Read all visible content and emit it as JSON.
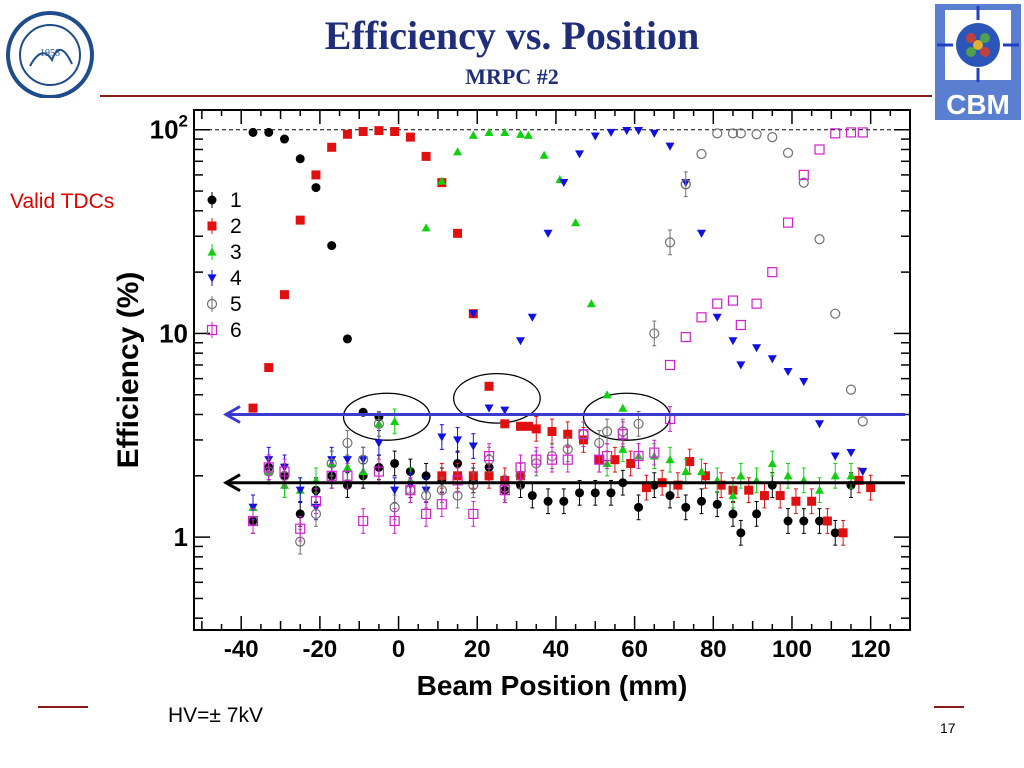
{
  "slide": {
    "title": "Efficiency vs. Position",
    "subtitle": "MRPC #2",
    "left_note": "Valid TDCs",
    "hv_label": "HV=± 7kV",
    "page_number": "17",
    "logo_right_text": "CBM",
    "logo_left_year": "1958"
  },
  "colors": {
    "title": "#1f2d7a",
    "rule": "#8b1a1a",
    "note": "#e00000",
    "blue_arrow": "#3a3ad0",
    "black_arrow": "#000000",
    "ellipse": "#000000"
  },
  "chart_data": {
    "type": "scatter",
    "xlabel": "Beam Position (mm)",
    "ylabel": "Efficiency (%)",
    "xlim": [
      -52,
      130
    ],
    "ylim": [
      0.35,
      125
    ],
    "yscale": "log",
    "xticks": [
      -40,
      -20,
      0,
      20,
      40,
      60,
      80,
      100,
      120
    ],
    "xtick_labels": [
      "-40",
      "-20",
      "0",
      "20",
      "40",
      "60",
      "80",
      "100",
      "120"
    ],
    "yticks": [
      1,
      10,
      100
    ],
    "ytick_labels": [
      "1",
      "10",
      "10^2"
    ],
    "legend_position": "top-left",
    "reference_line_y": 100,
    "arrows": [
      {
        "color": "blue",
        "y": 4.0
      },
      {
        "color": "black",
        "y": 1.85
      }
    ],
    "ellipses": [
      {
        "cx": -3,
        "cy": 3.9,
        "rx": 11,
        "ry_lo": 3.0,
        "ry_hi": 5.1
      },
      {
        "cx": 25,
        "cy": 4.8,
        "rx": 11,
        "ry_lo": 3.6,
        "ry_hi": 6.3
      },
      {
        "cx": 58,
        "cy": 3.9,
        "rx": 11,
        "ry_lo": 3.0,
        "ry_hi": 5.1
      }
    ],
    "series": [
      {
        "name": "1",
        "color": "#000000",
        "marker": "circle-filled",
        "main": [
          [
            -37,
            97
          ],
          [
            -33,
            97
          ],
          [
            -29,
            90
          ],
          [
            -25,
            72
          ],
          [
            -21,
            52
          ],
          [
            -17,
            27
          ],
          [
            -13,
            9.4
          ],
          [
            -9,
            4.1
          ],
          [
            -5,
            3.9
          ]
        ],
        "low": [
          [
            -37,
            1.2
          ],
          [
            -33,
            2.2
          ],
          [
            -29,
            2.0
          ],
          [
            -25,
            1.3
          ],
          [
            -21,
            1.7
          ],
          [
            -17,
            2.0
          ],
          [
            -13,
            1.8
          ],
          [
            -9,
            2.0
          ],
          [
            -5,
            2.2
          ],
          [
            -1,
            2.3
          ],
          [
            3,
            2.1
          ],
          [
            7,
            2.0
          ],
          [
            11,
            1.9
          ],
          [
            15,
            2.3
          ],
          [
            19,
            1.9
          ],
          [
            23,
            2.2
          ],
          [
            27,
            1.7
          ],
          [
            31,
            1.8
          ],
          [
            34,
            1.6
          ],
          [
            38,
            1.5
          ],
          [
            42,
            1.5
          ],
          [
            46,
            1.65
          ],
          [
            50,
            1.65
          ],
          [
            54,
            1.65
          ],
          [
            57,
            1.85
          ],
          [
            61,
            1.4
          ],
          [
            65,
            1.8
          ],
          [
            69,
            1.6
          ],
          [
            73,
            1.4
          ],
          [
            77,
            1.5
          ],
          [
            81,
            1.45
          ],
          [
            85,
            1.3
          ],
          [
            87,
            1.05
          ],
          [
            91,
            1.3
          ],
          [
            95,
            1.8
          ],
          [
            99,
            1.2
          ],
          [
            103,
            1.2
          ],
          [
            107,
            1.2
          ],
          [
            111,
            1.05
          ],
          [
            115,
            1.8
          ]
        ]
      },
      {
        "name": "2",
        "color": "#e01010",
        "marker": "square-filled",
        "main": [
          [
            -37,
            4.3
          ],
          [
            -33,
            6.8
          ],
          [
            -29,
            15.5
          ],
          [
            -25,
            36
          ],
          [
            -21,
            60
          ],
          [
            -17,
            82
          ],
          [
            -13,
            95
          ],
          [
            -9,
            98
          ],
          [
            -5,
            99
          ],
          [
            -1,
            98
          ],
          [
            3,
            92
          ],
          [
            7,
            74
          ],
          [
            11,
            55
          ],
          [
            15,
            31
          ],
          [
            19,
            12.5
          ],
          [
            23,
            5.5
          ],
          [
            27,
            3.6
          ],
          [
            31,
            3.5
          ],
          [
            33,
            3.5
          ]
        ],
        "low": [
          [
            11,
            2.0
          ],
          [
            15,
            2.0
          ],
          [
            19,
            2.0
          ],
          [
            23,
            2.0
          ],
          [
            27,
            1.9
          ],
          [
            31,
            2.0
          ],
          [
            35,
            3.4
          ],
          [
            39,
            3.3
          ],
          [
            43,
            3.2
          ],
          [
            47,
            3.0
          ],
          [
            51,
            2.4
          ],
          [
            55,
            2.4
          ],
          [
            59,
            2.3
          ],
          [
            63,
            1.75
          ],
          [
            67,
            1.85
          ],
          [
            71,
            1.8
          ],
          [
            74,
            2.35
          ],
          [
            78,
            2.0
          ],
          [
            82,
            1.8
          ],
          [
            85,
            1.7
          ],
          [
            89,
            1.7
          ],
          [
            93,
            1.6
          ],
          [
            97,
            1.6
          ],
          [
            101,
            1.5
          ],
          [
            105,
            1.5
          ],
          [
            109,
            1.2
          ],
          [
            113,
            1.05
          ],
          [
            117,
            1.9
          ],
          [
            120,
            1.75
          ]
        ]
      },
      {
        "name": "3",
        "color": "#10d010",
        "marker": "triangle-up",
        "main": [
          [
            7,
            33
          ],
          [
            11,
            56
          ],
          [
            15,
            78
          ],
          [
            19,
            94
          ],
          [
            23,
            97
          ],
          [
            27,
            97
          ],
          [
            31,
            95
          ],
          [
            33,
            94
          ],
          [
            37,
            75
          ],
          [
            41,
            57
          ],
          [
            45,
            35
          ],
          [
            49,
            14
          ],
          [
            53,
            5.0
          ],
          [
            57,
            4.3
          ]
        ],
        "low": [
          [
            -37,
            1.4
          ],
          [
            -33,
            2.1
          ],
          [
            -29,
            1.8
          ],
          [
            -25,
            1.7
          ],
          [
            -21,
            1.9
          ],
          [
            -17,
            2.3
          ],
          [
            -13,
            2.2
          ],
          [
            -9,
            2.1
          ],
          [
            -5,
            3.6
          ],
          [
            -1,
            3.7
          ],
          [
            3,
            1.9
          ],
          [
            53,
            2.3
          ],
          [
            57,
            2.7
          ],
          [
            61,
            2.5
          ],
          [
            65,
            2.5
          ],
          [
            69,
            2.4
          ],
          [
            73,
            2.1
          ],
          [
            77,
            2.1
          ],
          [
            81,
            1.9
          ],
          [
            85,
            1.6
          ],
          [
            87,
            2.0
          ],
          [
            91,
            1.9
          ],
          [
            95,
            2.3
          ],
          [
            99,
            2.0
          ],
          [
            103,
            1.9
          ],
          [
            107,
            1.7
          ],
          [
            111,
            2.0
          ],
          [
            115,
            2.0
          ]
        ]
      },
      {
        "name": "4",
        "color": "#1010e0",
        "marker": "triangle-down",
        "main": [
          [
            19,
            12.5
          ],
          [
            23,
            4.3
          ],
          [
            27,
            4.2
          ],
          [
            31,
            9.2
          ],
          [
            34,
            12
          ],
          [
            38,
            31
          ],
          [
            42,
            55
          ],
          [
            46,
            76
          ],
          [
            50,
            93
          ],
          [
            54,
            97
          ],
          [
            58,
            99
          ],
          [
            61,
            99
          ],
          [
            65,
            96
          ],
          [
            69,
            83
          ],
          [
            73,
            55
          ],
          [
            77,
            31
          ],
          [
            81,
            12
          ],
          [
            85,
            9.2
          ],
          [
            87,
            7.0
          ],
          [
            91,
            8.5
          ],
          [
            95,
            7.5
          ],
          [
            99,
            6.5
          ],
          [
            103,
            5.8
          ],
          [
            107,
            3.6
          ],
          [
            111,
            2.5
          ],
          [
            115,
            2.6
          ],
          [
            118,
            2.1
          ]
        ],
        "low": [
          [
            -37,
            1.4
          ],
          [
            -33,
            2.4
          ],
          [
            -29,
            2.2
          ],
          [
            -25,
            1.7
          ],
          [
            -21,
            1.4
          ],
          [
            -17,
            2.4
          ],
          [
            -13,
            2.4
          ],
          [
            -9,
            2.4
          ],
          [
            -5,
            2.9
          ],
          [
            -1,
            1.7
          ],
          [
            3,
            1.8
          ],
          [
            7,
            1.7
          ],
          [
            11,
            3.1
          ],
          [
            15,
            3.0
          ],
          [
            19,
            2.8
          ]
        ]
      },
      {
        "name": "5",
        "color": "#707070",
        "marker": "circle-open",
        "main": [
          [
            73,
            54
          ],
          [
            77,
            76
          ],
          [
            81,
            96
          ],
          [
            85,
            96
          ],
          [
            87,
            96
          ],
          [
            91,
            95
          ],
          [
            95,
            92
          ],
          [
            99,
            77
          ],
          [
            103,
            55
          ],
          [
            107,
            29
          ],
          [
            111,
            12.5
          ],
          [
            115,
            5.3
          ],
          [
            118,
            3.7
          ]
        ],
        "low": [
          [
            -37,
            1.2
          ],
          [
            -33,
            2.1
          ],
          [
            -29,
            2.0
          ],
          [
            -25,
            0.95
          ],
          [
            -21,
            1.3
          ],
          [
            -17,
            2.3
          ],
          [
            -13,
            2.9
          ],
          [
            -9,
            2.4
          ],
          [
            -5,
            3.6
          ],
          [
            -1,
            1.4
          ],
          [
            3,
            1.7
          ],
          [
            7,
            1.6
          ],
          [
            11,
            1.7
          ],
          [
            15,
            1.6
          ],
          [
            19,
            1.8
          ],
          [
            23,
            2.4
          ],
          [
            27,
            1.75
          ],
          [
            31,
            2.0
          ],
          [
            35,
            2.3
          ],
          [
            39,
            2.5
          ],
          [
            43,
            2.7
          ],
          [
            47,
            3.2
          ],
          [
            51,
            2.9
          ],
          [
            53,
            3.3
          ],
          [
            57,
            3.3
          ],
          [
            61,
            3.6
          ],
          [
            65,
            10
          ],
          [
            69,
            28
          ],
          [
            73,
            54
          ]
        ]
      },
      {
        "name": "6",
        "color": "#d020d0",
        "marker": "square-open",
        "main": [
          [
            69,
            7.0
          ],
          [
            73,
            9.6
          ],
          [
            77,
            12
          ],
          [
            81,
            14
          ],
          [
            85,
            14.5
          ],
          [
            87,
            11
          ],
          [
            91,
            14
          ],
          [
            95,
            20
          ],
          [
            99,
            35
          ],
          [
            103,
            60
          ],
          [
            107,
            80
          ],
          [
            111,
            96
          ],
          [
            115,
            97
          ],
          [
            118,
            97
          ]
        ],
        "low": [
          [
            -37,
            1.2
          ],
          [
            -33,
            2.2
          ],
          [
            -29,
            2.1
          ],
          [
            -25,
            1.1
          ],
          [
            -21,
            1.5
          ],
          [
            -17,
            2.0
          ],
          [
            -13,
            2.0
          ],
          [
            -9,
            1.2
          ],
          [
            -5,
            2.1
          ],
          [
            -1,
            1.2
          ],
          [
            3,
            1.7
          ],
          [
            7,
            1.3
          ],
          [
            11,
            1.45
          ],
          [
            15,
            1.9
          ],
          [
            19,
            1.3
          ],
          [
            23,
            2.5
          ],
          [
            27,
            1.7
          ],
          [
            31,
            2.2
          ],
          [
            35,
            2.4
          ],
          [
            39,
            2.4
          ],
          [
            43,
            2.4
          ],
          [
            47,
            3.2
          ],
          [
            51,
            2.4
          ],
          [
            53,
            2.5
          ],
          [
            57,
            3.2
          ],
          [
            61,
            2.5
          ],
          [
            65,
            2.6
          ],
          [
            69,
            3.8
          ]
        ]
      }
    ]
  }
}
